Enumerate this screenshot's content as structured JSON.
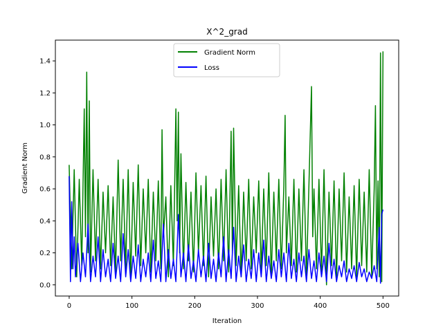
{
  "chart_data": {
    "type": "line",
    "title": "X^2_grad",
    "xlabel": "Iteration",
    "ylabel": "Gradient Norm",
    "xlim": [
      -22,
      525
    ],
    "ylim": [
      -0.07,
      1.53
    ],
    "xticks": [
      0,
      100,
      200,
      300,
      400,
      500
    ],
    "yticks": [
      0.0,
      0.2,
      0.4,
      0.6,
      0.8,
      1.0,
      1.2,
      1.4
    ],
    "ytick_labels": [
      "0.0",
      "0.2",
      "0.4",
      "0.6",
      "0.8",
      "1.0",
      "1.2",
      "1.4"
    ],
    "grid": false,
    "legend_position": "top-center",
    "series": [
      {
        "name": "Gradient Norm",
        "color": "#008000",
        "x": [
          0,
          4,
          8,
          12,
          16,
          20,
          24,
          26,
          28,
          30,
          32,
          34,
          38,
          42,
          46,
          50,
          54,
          58,
          62,
          66,
          70,
          74,
          78,
          82,
          86,
          90,
          94,
          98,
          102,
          106,
          110,
          114,
          118,
          122,
          126,
          130,
          134,
          138,
          142,
          146,
          148,
          150,
          154,
          158,
          162,
          166,
          170,
          172,
          174,
          176,
          178,
          182,
          186,
          190,
          194,
          198,
          202,
          206,
          210,
          214,
          218,
          222,
          226,
          230,
          234,
          238,
          242,
          246,
          250,
          254,
          258,
          260,
          262,
          266,
          270,
          274,
          278,
          282,
          286,
          290,
          294,
          298,
          302,
          306,
          310,
          314,
          318,
          322,
          326,
          330,
          334,
          338,
          342,
          344,
          346,
          350,
          354,
          358,
          362,
          366,
          370,
          374,
          378,
          382,
          386,
          388,
          390,
          394,
          398,
          402,
          406,
          410,
          414,
          418,
          422,
          426,
          430,
          434,
          438,
          442,
          446,
          450,
          454,
          458,
          462,
          466,
          470,
          474,
          478,
          482,
          486,
          488,
          490,
          492,
          494,
          496,
          498,
          500
        ],
        "values": [
          0.75,
          0.1,
          0.72,
          0.05,
          0.66,
          0.12,
          1.1,
          0.3,
          1.33,
          0.2,
          1.15,
          0.08,
          0.72,
          0.15,
          0.66,
          0.1,
          0.58,
          0.2,
          0.62,
          0.12,
          0.55,
          0.08,
          0.78,
          0.15,
          0.66,
          0.1,
          0.72,
          0.05,
          0.64,
          0.18,
          0.75,
          0.12,
          0.6,
          0.2,
          0.66,
          0.08,
          0.58,
          0.15,
          0.65,
          0.1,
          0.97,
          0.3,
          0.55,
          0.05,
          0.62,
          0.12,
          1.1,
          0.4,
          1.08,
          0.2,
          0.82,
          0.1,
          0.64,
          0.15,
          0.58,
          0.08,
          0.7,
          0.2,
          0.62,
          0.12,
          0.68,
          0.05,
          0.55,
          0.18,
          0.6,
          0.1,
          0.66,
          0.15,
          0.72,
          0.08,
          0.96,
          0.2,
          0.98,
          0.12,
          0.62,
          0.05,
          0.58,
          0.15,
          0.66,
          0.1,
          0.55,
          0.2,
          0.65,
          0.08,
          0.6,
          0.12,
          0.7,
          0.05,
          0.58,
          0.15,
          0.66,
          0.1,
          0.62,
          1.06,
          0.2,
          0.55,
          0.12,
          0.66,
          0.08,
          0.6,
          0.15,
          0.72,
          0.05,
          0.62,
          1.24,
          0.3,
          0.6,
          0.1,
          0.66,
          0.08,
          0.72,
          0.0,
          0.58,
          0.12,
          0.65,
          0.05,
          0.6,
          0.15,
          0.7,
          0.08,
          0.55,
          0.1,
          0.62,
          0.05,
          0.66,
          0.12,
          0.58,
          0.08,
          0.72,
          0.05,
          0.6,
          1.12,
          0.1,
          0.65,
          0.05,
          1.45,
          0.02,
          1.46
        ]
      },
      {
        "name": "Loss",
        "color": "#0000ff",
        "x": [
          0,
          2,
          4,
          6,
          8,
          10,
          14,
          18,
          22,
          26,
          30,
          34,
          38,
          42,
          46,
          50,
          54,
          58,
          62,
          66,
          70,
          74,
          78,
          82,
          86,
          90,
          94,
          98,
          102,
          106,
          110,
          114,
          118,
          122,
          126,
          130,
          134,
          138,
          142,
          146,
          150,
          154,
          158,
          162,
          166,
          170,
          174,
          178,
          182,
          186,
          190,
          194,
          198,
          202,
          206,
          210,
          214,
          218,
          222,
          226,
          230,
          234,
          238,
          242,
          246,
          250,
          254,
          258,
          262,
          266,
          270,
          274,
          278,
          282,
          286,
          290,
          294,
          298,
          302,
          306,
          310,
          314,
          318,
          322,
          326,
          330,
          334,
          338,
          342,
          346,
          350,
          354,
          358,
          362,
          366,
          370,
          374,
          378,
          382,
          386,
          390,
          394,
          398,
          402,
          406,
          410,
          414,
          418,
          422,
          426,
          430,
          434,
          438,
          442,
          446,
          450,
          454,
          458,
          462,
          466,
          470,
          474,
          478,
          482,
          486,
          490,
          494,
          496,
          498,
          500
        ],
        "values": [
          0.68,
          0.02,
          0.52,
          0.1,
          0.3,
          0.05,
          0.26,
          0.02,
          0.2,
          0.05,
          0.38,
          0.02,
          0.18,
          0.05,
          0.3,
          0.02,
          0.22,
          0.05,
          0.16,
          0.02,
          0.26,
          0.04,
          0.18,
          0.02,
          0.32,
          0.05,
          0.22,
          0.02,
          0.18,
          0.04,
          0.25,
          0.02,
          0.16,
          0.05,
          0.2,
          0.02,
          0.28,
          0.04,
          0.15,
          0.02,
          0.38,
          0.02,
          0.22,
          0.04,
          0.16,
          0.02,
          0.44,
          0.05,
          0.2,
          0.02,
          0.25,
          0.04,
          0.15,
          0.02,
          0.22,
          0.05,
          0.18,
          0.02,
          0.26,
          0.04,
          0.16,
          0.02,
          0.2,
          0.05,
          0.3,
          0.02,
          0.22,
          0.04,
          0.36,
          0.02,
          0.18,
          0.05,
          0.25,
          0.02,
          0.16,
          0.04,
          0.22,
          0.02,
          0.2,
          0.05,
          0.28,
          0.02,
          0.18,
          0.04,
          0.15,
          0.02,
          0.22,
          0.05,
          0.2,
          0.02,
          0.26,
          0.04,
          0.16,
          0.02,
          0.2,
          0.05,
          0.18,
          0.02,
          0.22,
          0.04,
          0.15,
          0.02,
          0.2,
          0.05,
          0.18,
          0.02,
          0.26,
          0.04,
          0.16,
          0.02,
          0.12,
          0.05,
          0.15,
          0.02,
          0.1,
          0.04,
          0.12,
          0.02,
          0.14,
          0.05,
          0.1,
          0.02,
          0.08,
          0.04,
          0.12,
          0.02,
          0.36,
          0.01,
          0.44,
          0.47
        ]
      }
    ]
  }
}
